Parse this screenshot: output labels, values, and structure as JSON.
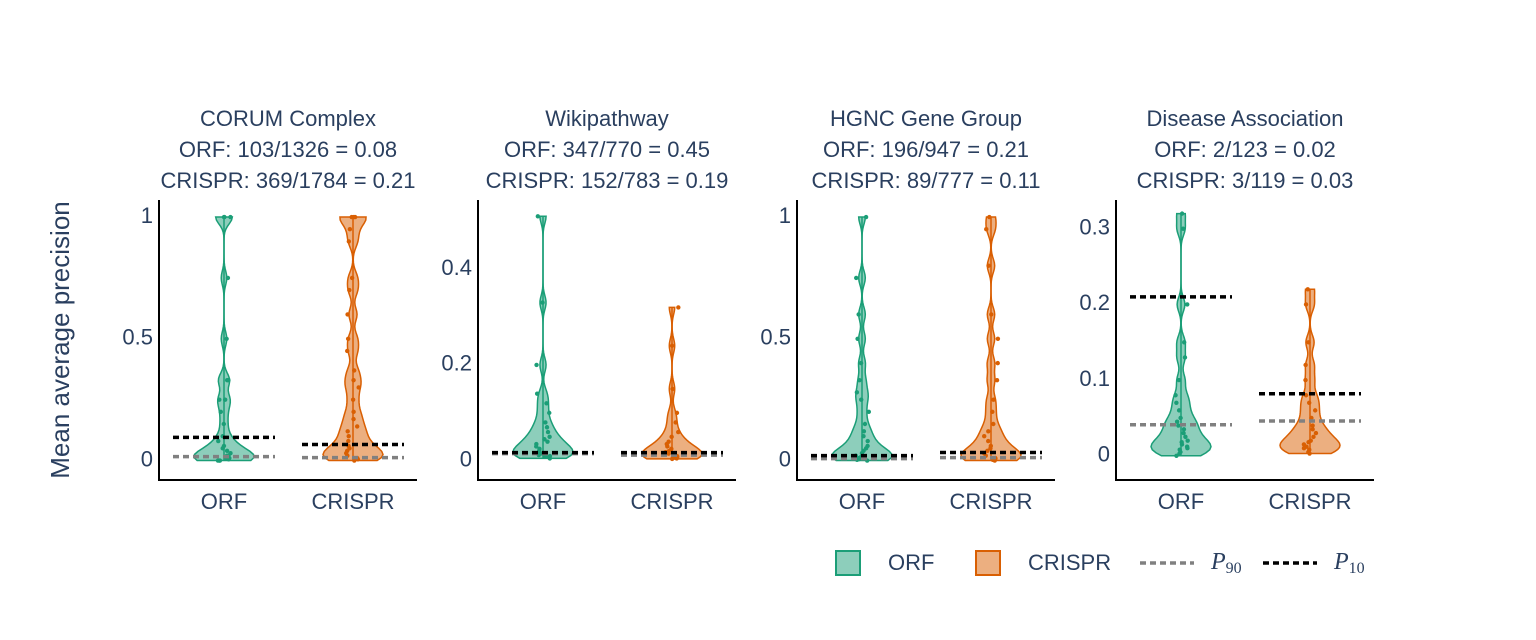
{
  "chart_data": [
    {
      "type": "violin",
      "title": "CORUM Complex",
      "subtitle": [
        "ORF: 103/1326 = 0.08",
        "CRISPR: 369/1784 = 0.21"
      ],
      "ylabel": "Mean average precision",
      "categories": [
        "ORF",
        "CRISPR"
      ],
      "ylim": [
        -0.08,
        1.07
      ],
      "yticks": [
        0,
        0.5,
        1
      ],
      "series": [
        {
          "name": "ORF",
          "color": "#1b9e77",
          "values": [
            1,
            1,
            1,
            0.75,
            0.5,
            0.33,
            0.33,
            0.25,
            0.25,
            0.2,
            0.15,
            0.1,
            0.08,
            0.06,
            0.05,
            0.04,
            0.03,
            0.02,
            0.02,
            0.01,
            0.01,
            0.01,
            0.005,
            0,
            0,
            0
          ]
        },
        {
          "name": "CRISPR",
          "color": "#d95f02",
          "values": [
            1,
            1,
            1,
            0.95,
            0.9,
            0.75,
            0.7,
            0.6,
            0.5,
            0.45,
            0.37,
            0.33,
            0.3,
            0.25,
            0.2,
            0.17,
            0.14,
            0.12,
            0.1,
            0.08,
            0.06,
            0.05,
            0.04,
            0.03,
            0.02,
            0.01,
            0.01,
            0.005,
            0
          ]
        }
      ],
      "reference_lines": [
        {
          "name": {
            "symbol": "P",
            "subscript": "90"
          },
          "color": "#808080",
          "values": [
            0.016,
            0.012
          ]
        },
        {
          "name": {
            "symbol": "P",
            "subscript": "10"
          },
          "color": "#000000",
          "values": [
            0.095,
            0.066
          ]
        }
      ]
    },
    {
      "type": "violin",
      "title": "Wikipathway",
      "subtitle": [
        "ORF: 347/770 = 0.45",
        "CRISPR: 152/783 = 0.19"
      ],
      "categories": [
        "ORF",
        "CRISPR"
      ],
      "ylim": [
        -0.04,
        0.544
      ],
      "yticks": [
        0,
        0.2,
        0.4
      ],
      "series": [
        {
          "name": "ORF",
          "color": "#1b9e77",
          "values": [
            0.51,
            0.33,
            0.2,
            0.14,
            0.12,
            0.1,
            0.08,
            0.07,
            0.06,
            0.05,
            0.045,
            0.04,
            0.035,
            0.03,
            0.025,
            0.02,
            0.02,
            0.015,
            0.012,
            0.01,
            0.01,
            0.008,
            0.005
          ]
        },
        {
          "name": "CRISPR",
          "color": "#d95f02",
          "values": [
            0.32,
            0.24,
            0.15,
            0.1,
            0.08,
            0.06,
            0.05,
            0.04,
            0.035,
            0.03,
            0.025,
            0.02,
            0.018,
            0.015,
            0.012,
            0.01,
            0.01,
            0.008,
            0.006,
            0.005,
            0.004
          ]
        }
      ],
      "reference_lines": [
        {
          "name": {
            "symbol": "P",
            "subscript": "90"
          },
          "color": "#808080",
          "values": [
            0.015,
            0.012
          ]
        },
        {
          "name": {
            "symbol": "P",
            "subscript": "10"
          },
          "color": "#000000",
          "values": [
            0.017,
            0.017
          ]
        }
      ]
    },
    {
      "type": "violin",
      "title": "HGNC Gene Group",
      "subtitle": [
        "ORF: 196/947 = 0.21",
        "CRISPR: 89/777 = 0.11"
      ],
      "categories": [
        "ORF",
        "CRISPR"
      ],
      "ylim": [
        -0.08,
        1.07
      ],
      "yticks": [
        0,
        0.5,
        1
      ],
      "series": [
        {
          "name": "ORF",
          "color": "#1b9e77",
          "values": [
            1,
            0.75,
            0.6,
            0.5,
            0.4,
            0.33,
            0.28,
            0.25,
            0.2,
            0.15,
            0.12,
            0.1,
            0.08,
            0.06,
            0.05,
            0.04,
            0.03,
            0.02,
            0.015,
            0.01,
            0.01,
            0.005,
            0.003,
            0
          ]
        },
        {
          "name": "CRISPR",
          "color": "#d95f02",
          "values": [
            1,
            0.95,
            0.8,
            0.6,
            0.5,
            0.4,
            0.33,
            0.25,
            0.2,
            0.15,
            0.12,
            0.1,
            0.08,
            0.06,
            0.05,
            0.04,
            0.03,
            0.02,
            0.01,
            0.008,
            0.005,
            0.003,
            0
          ]
        }
      ],
      "reference_lines": [
        {
          "name": {
            "symbol": "P",
            "subscript": "90"
          },
          "color": "#808080",
          "values": [
            0.008,
            0.012
          ]
        },
        {
          "name": {
            "symbol": "P",
            "subscript": "10"
          },
          "color": "#000000",
          "values": [
            0.02,
            0.033
          ]
        }
      ]
    },
    {
      "type": "violin",
      "title": "Disease Association",
      "subtitle": [
        "ORF: 2/123 = 0.02",
        "CRISPR: 3/119 = 0.03"
      ],
      "categories": [
        "ORF",
        "CRISPR"
      ],
      "ylim": [
        -0.032,
        0.338
      ],
      "yticks": [
        0,
        0.1,
        0.2,
        0.3
      ],
      "series": [
        {
          "name": "ORF",
          "color": "#1b9e77",
          "values": [
            0.32,
            0.3,
            0.2,
            0.15,
            0.13,
            0.1,
            0.08,
            0.07,
            0.06,
            0.05,
            0.045,
            0.04,
            0.035,
            0.03,
            0.025,
            0.02,
            0.018,
            0.015,
            0.012,
            0.01,
            0.008,
            0.005,
            0.003,
            0
          ]
        },
        {
          "name": "CRISPR",
          "color": "#d95f02",
          "values": [
            0.22,
            0.2,
            0.15,
            0.12,
            0.1,
            0.08,
            0.07,
            0.06,
            0.05,
            0.04,
            0.035,
            0.03,
            0.025,
            0.02,
            0.018,
            0.015,
            0.012,
            0.01,
            0.008,
            0.005,
            0.003
          ]
        }
      ],
      "reference_lines": [
        {
          "name": {
            "symbol": "P",
            "subscript": "90"
          },
          "color": "#808080",
          "values": [
            0.041,
            0.046
          ]
        },
        {
          "name": {
            "symbol": "P",
            "subscript": "10"
          },
          "color": "#000000",
          "values": [
            0.21,
            0.082
          ]
        }
      ]
    }
  ]
}
